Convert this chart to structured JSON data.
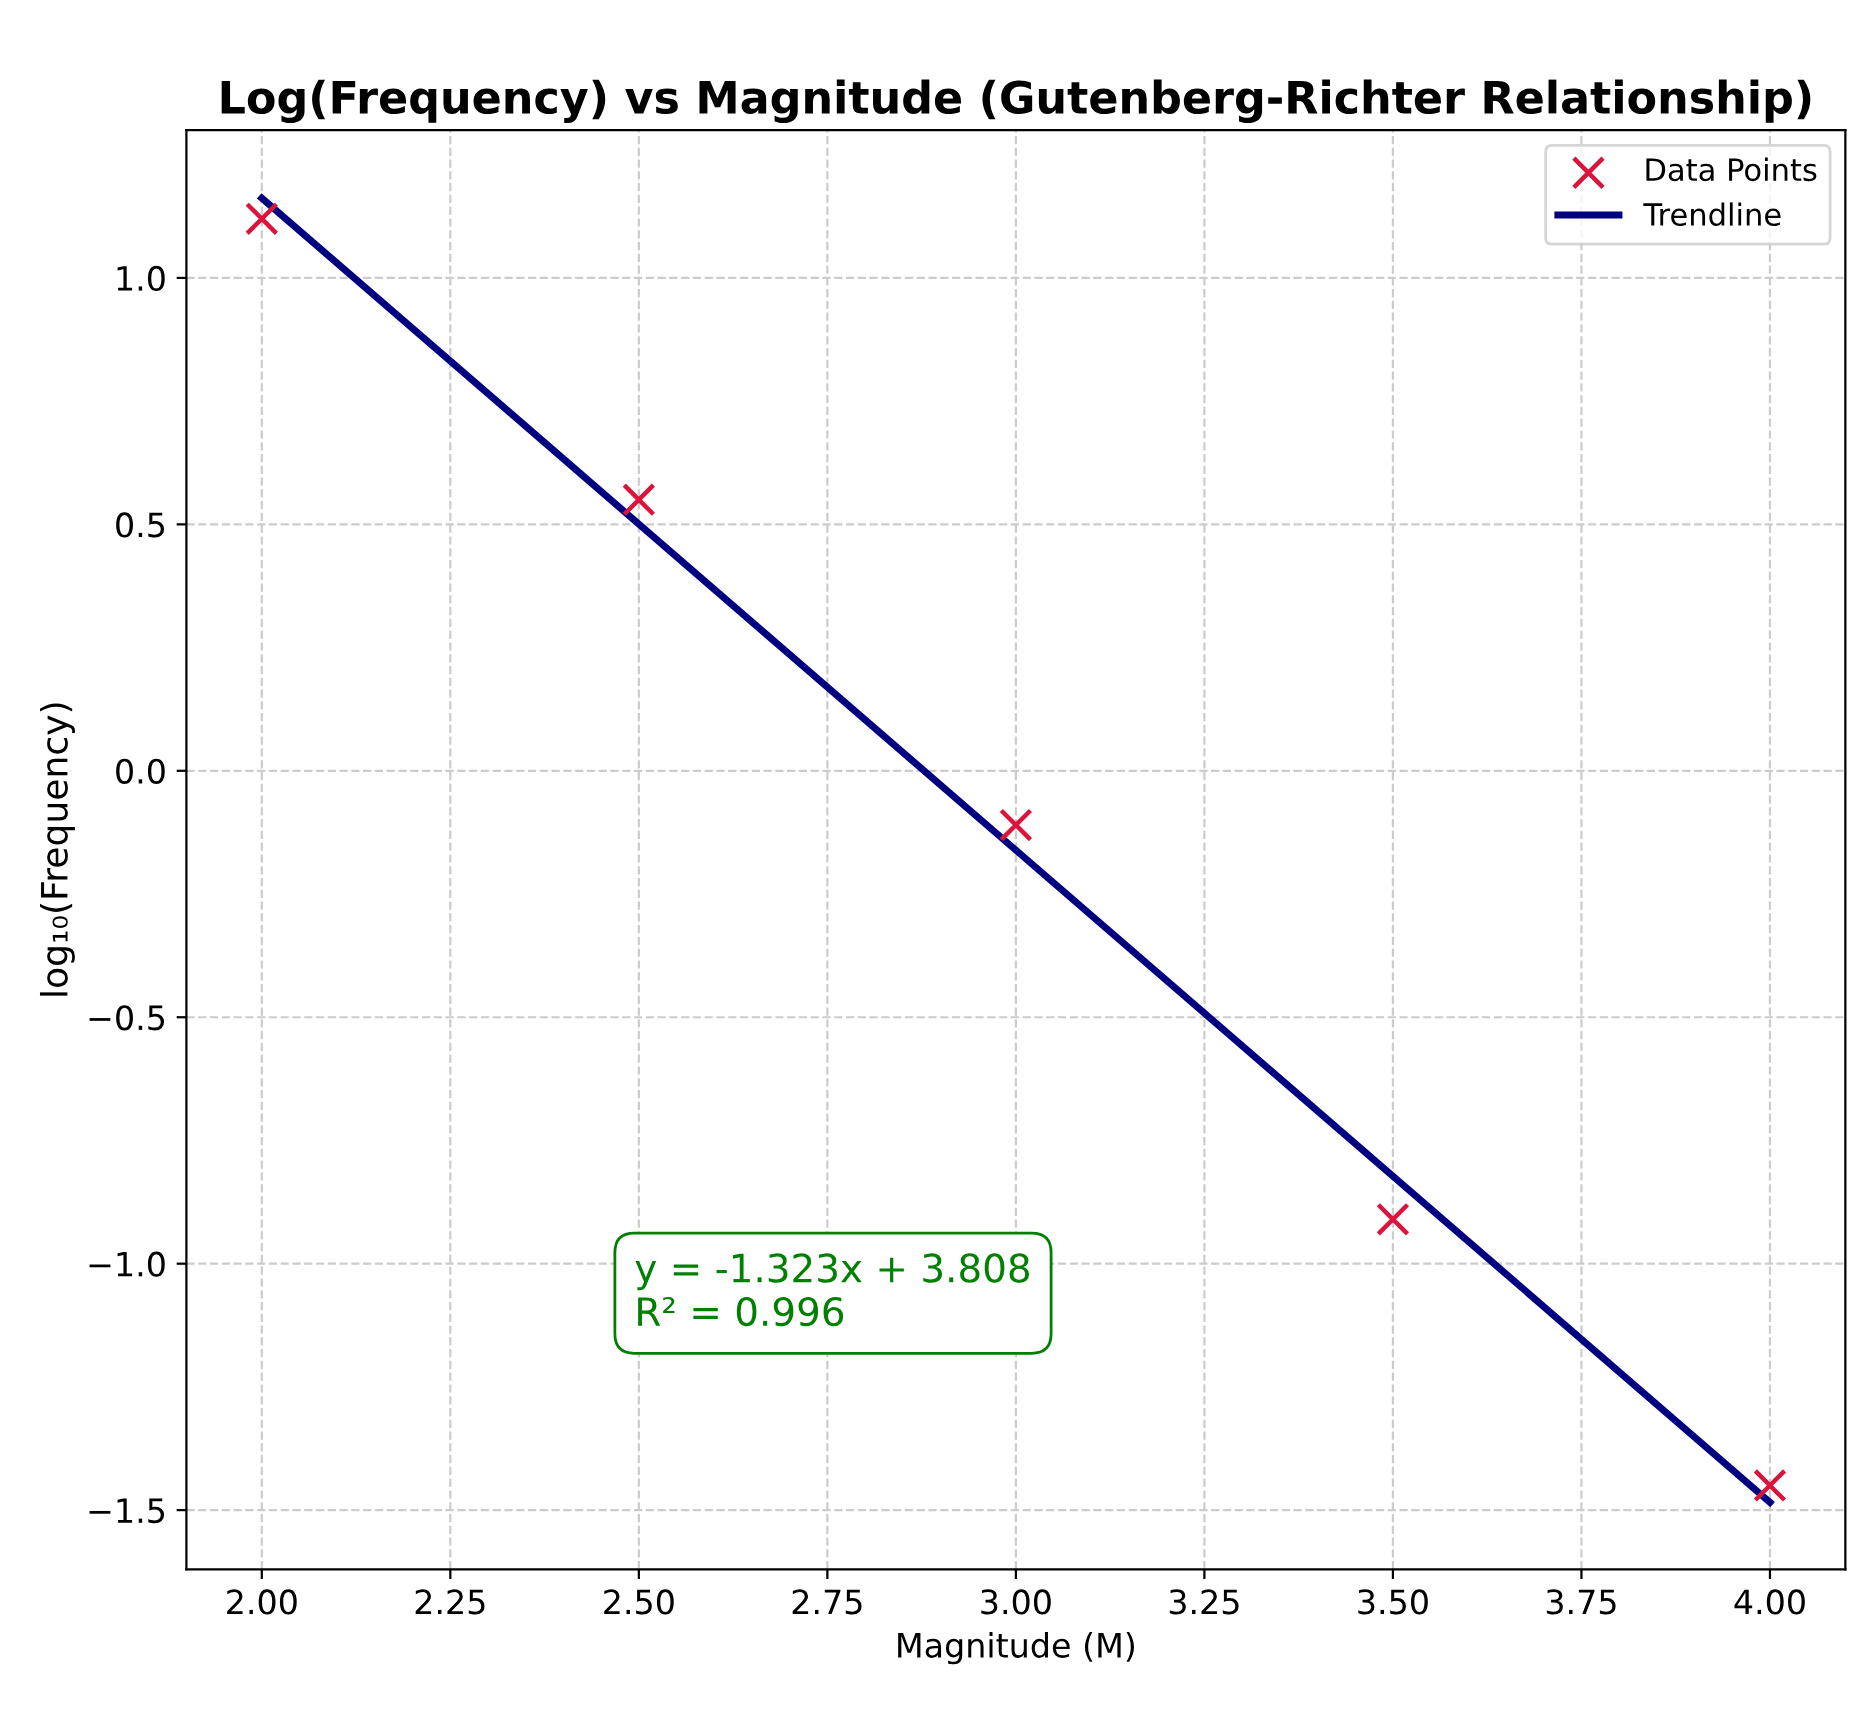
{
  "chart_data": {
    "type": "scatter",
    "title": "Log(Frequency) vs Magnitude (Gutenberg-Richter Relationship)",
    "xlabel": "Magnitude (M)",
    "ylabel": "log₁₀(Frequency)",
    "series": [
      {
        "name": "Data Points",
        "color": "#dc143c",
        "marker": "cross",
        "x": [
          2.0,
          2.5,
          3.0,
          3.5,
          4.0
        ],
        "values": [
          1.12,
          0.55,
          -0.11,
          -0.91,
          -1.45
        ]
      },
      {
        "name": "Trendline",
        "type": "line",
        "color": "#000080",
        "marker": "none",
        "line_style": "solid",
        "x": [
          2.0,
          4.0
        ],
        "values": [
          1.162,
          -1.484
        ]
      }
    ],
    "annotations": [
      "y = -1.323x + 3.808\nR² = 0.996"
    ],
    "xlim": [
      1.9,
      4.1
    ],
    "ylim": [
      -1.62,
      1.3
    ],
    "xticks": [
      {
        "value": 2.0,
        "label": "2.00"
      },
      {
        "value": 2.25,
        "label": "2.25"
      },
      {
        "value": 2.5,
        "label": "2.50"
      },
      {
        "value": 2.75,
        "label": "2.75"
      },
      {
        "value": 3.0,
        "label": "3.00"
      },
      {
        "value": 3.25,
        "label": "3.25"
      },
      {
        "value": 3.5,
        "label": "3.50"
      },
      {
        "value": 3.75,
        "label": "3.75"
      },
      {
        "value": 4.0,
        "label": "4.00"
      }
    ],
    "yticks": [
      {
        "value": -1.5,
        "label": "−1.5"
      },
      {
        "value": -1.0,
        "label": "−1.0"
      },
      {
        "value": -0.5,
        "label": "−0.5"
      },
      {
        "value": 0.0,
        "label": "0.0"
      },
      {
        "value": 0.5,
        "label": "0.5"
      },
      {
        "value": 1.0,
        "label": "1.0"
      }
    ],
    "grid": true,
    "legend": "top right"
  }
}
